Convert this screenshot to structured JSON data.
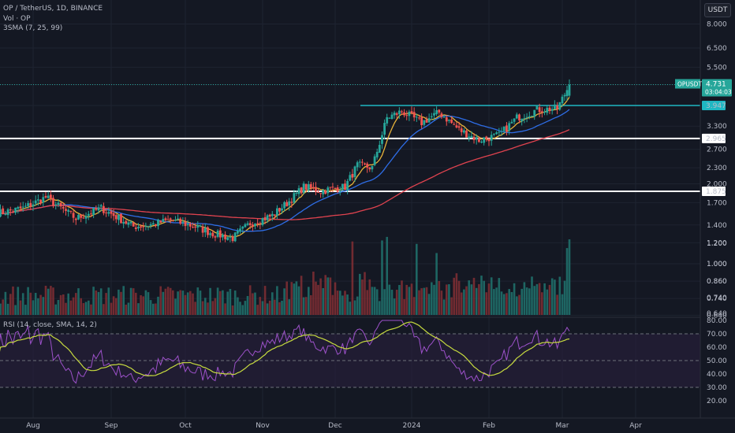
{
  "header": {
    "symbol_line": "OP / TetherUS, 1D, BINANCE",
    "volume_line": "Vol · OP",
    "sma_line": "3SMA (7, 25, 99)",
    "currency": "USDT"
  },
  "rsi_header": "RSI (14, close, SMA, 14, 2)",
  "price_flag": {
    "ticker": "OPUSDT",
    "price": "4.731",
    "countdown": "03:04:03",
    "color": "#26a69a"
  },
  "colors": {
    "background": "#141823",
    "candle_up": "#26a69a",
    "candle_down": "#ef5350",
    "sma7": "#e8b33a",
    "sma25": "#2e6de6",
    "sma99": "#e0434f",
    "resistance": "#1fb7c3",
    "support": "#ffffff",
    "rsi_line": "#9c51c9",
    "rsi_sma": "#c7db3f"
  },
  "chart_data": {
    "type": "candlestick",
    "title": "OP / TetherUS, 1D, BINANCE",
    "scale": "log",
    "price_axis": {
      "labels": [
        "8.000",
        "6.500",
        "5.500",
        "4.731",
        "3.947",
        "3.300",
        "2.965",
        "2.700",
        "2.300",
        "2.000",
        "1.875",
        "1.700",
        "1.400",
        "1.200",
        "1.000",
        "0.860",
        "0.740",
        "0.640"
      ]
    },
    "x_axis": {
      "labels": [
        "Aug",
        "Sep",
        "Oct",
        "Nov",
        "Dec",
        "2024",
        "Feb",
        "Mar",
        "Apr"
      ]
    },
    "horizontal_levels": [
      {
        "value": 3.947,
        "label": "3.947",
        "color": "#1fb7c3",
        "start_month": "Dec"
      },
      {
        "value": 2.965,
        "label": "2.965",
        "color": "#ffffff"
      },
      {
        "value": 1.875,
        "label": "1.875",
        "color": "#ffffff"
      }
    ],
    "price_path": [
      {
        "date": "2023-07-18",
        "close": 1.55
      },
      {
        "date": "2023-07-28",
        "close": 1.62
      },
      {
        "date": "2023-08-06",
        "close": 1.78
      },
      {
        "date": "2023-08-18",
        "close": 1.48
      },
      {
        "date": "2023-08-28",
        "close": 1.62
      },
      {
        "date": "2023-09-10",
        "close": 1.38
      },
      {
        "date": "2023-09-18",
        "close": 1.41
      },
      {
        "date": "2023-09-25",
        "close": 1.46
      },
      {
        "date": "2023-10-05",
        "close": 1.38
      },
      {
        "date": "2023-10-12",
        "close": 1.3
      },
      {
        "date": "2023-10-20",
        "close": 1.25
      },
      {
        "date": "2023-10-27",
        "close": 1.42
      },
      {
        "date": "2023-11-05",
        "close": 1.52
      },
      {
        "date": "2023-11-12",
        "close": 1.72
      },
      {
        "date": "2023-11-18",
        "close": 1.95
      },
      {
        "date": "2023-11-25",
        "close": 1.88
      },
      {
        "date": "2023-12-05",
        "close": 1.95
      },
      {
        "date": "2023-12-10",
        "close": 2.35
      },
      {
        "date": "2023-12-16",
        "close": 2.3
      },
      {
        "date": "2023-12-22",
        "close": 3.55
      },
      {
        "date": "2023-12-28",
        "close": 3.75
      },
      {
        "date": "2024-01-05",
        "close": 3.4
      },
      {
        "date": "2024-01-12",
        "close": 3.72
      },
      {
        "date": "2024-01-20",
        "close": 3.2
      },
      {
        "date": "2024-01-28",
        "close": 2.92
      },
      {
        "date": "2024-02-05",
        "close": 3.05
      },
      {
        "date": "2024-02-12",
        "close": 3.55
      },
      {
        "date": "2024-02-20",
        "close": 3.8
      },
      {
        "date": "2024-02-28",
        "close": 3.85
      },
      {
        "date": "2024-03-04",
        "close": 4.731
      }
    ],
    "sma": [
      {
        "name": "SMA 7",
        "color": "#e8b33a"
      },
      {
        "name": "SMA 25",
        "color": "#2e6de6"
      },
      {
        "name": "SMA 99",
        "color": "#e0434f"
      }
    ],
    "volume": {
      "labels": [
        "1.200",
        "1.000",
        "0.860",
        "0.740",
        "0.640"
      ]
    },
    "rsi": {
      "labels": [
        "80.00",
        "70.00",
        "60.00",
        "50.00",
        "40.00",
        "30.00",
        "20.00"
      ],
      "levels": [
        70,
        50,
        30
      ],
      "last": 72
    }
  }
}
